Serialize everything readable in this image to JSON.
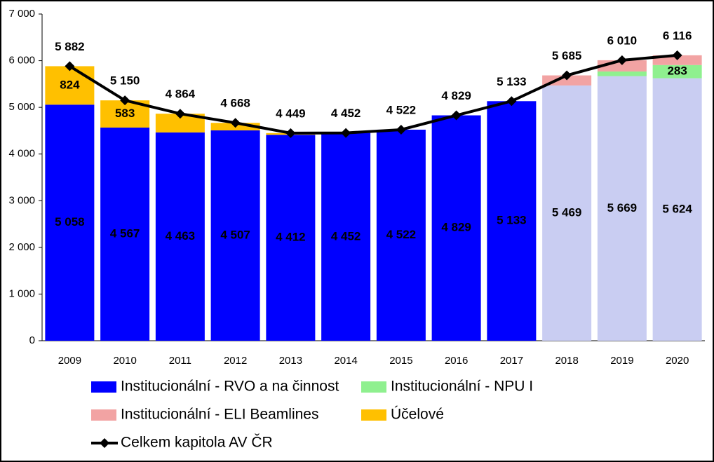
{
  "chart_data": {
    "type": "bar",
    "stacked": true,
    "categories": [
      "2009",
      "2010",
      "2011",
      "2012",
      "2013",
      "2014",
      "2015",
      "2016",
      "2017",
      "2018",
      "2019",
      "2020"
    ],
    "ylim": [
      0,
      7000
    ],
    "yticks": [
      0,
      {
        "value": 1000,
        "label": "1 000"
      },
      {
        "value": 2000,
        "label": "2 000"
      },
      {
        "value": 3000,
        "label": "3 000"
      },
      {
        "value": 4000,
        "label": "4 000"
      },
      {
        "value": 5000,
        "label": "5 000"
      },
      {
        "value": 6000,
        "label": "6 000"
      },
      {
        "value": 7000,
        "label": "7 000"
      }
    ],
    "series": [
      {
        "name": "Institucionální - RVO a na činnost",
        "type": "bar",
        "color": "#0000ff",
        "colors": [
          "#0000ff",
          "#0000ff",
          "#0000ff",
          "#0000ff",
          "#0000ff",
          "#0000ff",
          "#0000ff",
          "#0000ff",
          "#0000ff",
          "#c9cdf2",
          "#c9cdf2",
          "#c9cdf2"
        ],
        "values": [
          5058,
          4567,
          4463,
          4507,
          4412,
          4452,
          4522,
          4829,
          5133,
          5469,
          5669,
          5624
        ],
        "value_labels": [
          "5 058",
          "4 567",
          "4 463",
          "4 507",
          "4 412",
          "4 452",
          "4 522",
          "4 829",
          "5 133",
          "5 469",
          "5 669",
          "5 624"
        ]
      },
      {
        "name": "Institucionální - NPU I",
        "type": "bar",
        "color": "#8ff08f",
        "values": [
          null,
          null,
          null,
          null,
          null,
          null,
          null,
          null,
          null,
          0,
          100,
          283
        ],
        "value_labels": [
          null,
          null,
          null,
          null,
          null,
          null,
          null,
          null,
          null,
          null,
          null,
          "283"
        ]
      },
      {
        "name": "Institucionální - ELI Beamlines",
        "type": "bar",
        "color": "#f2a3a3",
        "values": [
          null,
          null,
          null,
          null,
          null,
          null,
          null,
          null,
          null,
          216,
          241,
          209
        ]
      },
      {
        "name": "Účelové",
        "type": "bar",
        "color": "#ffc000",
        "values": [
          824,
          583,
          401,
          161,
          37,
          0,
          0,
          0,
          0,
          null,
          null,
          null
        ],
        "value_labels": [
          "824",
          "583",
          null,
          null,
          null,
          null,
          null,
          null,
          null,
          null,
          null,
          null
        ]
      },
      {
        "name": "Celkem kapitola AV ČR",
        "type": "line",
        "color": "#000000",
        "values": [
          5882,
          5150,
          4864,
          4668,
          4449,
          4452,
          4522,
          4829,
          5133,
          5685,
          6010,
          6116
        ],
        "value_labels": [
          "5 882",
          "5 150",
          "4 864",
          "4 668",
          "4 449",
          "4 452",
          "4 522",
          "4 829",
          "5 133",
          "5 685",
          "6 010",
          "6 116"
        ]
      }
    ]
  }
}
